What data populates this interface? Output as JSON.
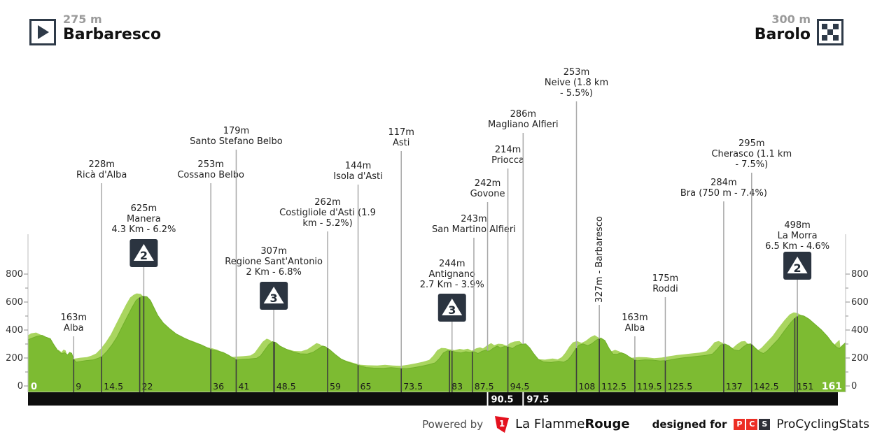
{
  "header": {
    "start": {
      "elevation": "275 m",
      "name": "Barbaresco"
    },
    "finish": {
      "elevation": "300 m",
      "name": "Barolo"
    }
  },
  "footer": {
    "powered_by": "Powered by",
    "lfr_regular": "La Flamme",
    "lfr_bold": "Rouge",
    "lfr_digit": "1",
    "designed_for": "designed for",
    "pcs_letters": [
      "P",
      "C",
      "S"
    ],
    "pcs_name": "ProCyclingStats",
    "lfr_red": "#e4111e",
    "pcs_red": "#ec2e24",
    "pcs_dark": "#2f3038"
  },
  "chart_data": {
    "type": "area",
    "title": "Barbaresco - Barolo",
    "xlim": [
      0,
      161
    ],
    "ylim": [
      0,
      900
    ],
    "x_ticks": [
      0,
      9,
      14.5,
      22,
      36,
      41,
      48.5,
      59,
      65,
      73.5,
      83,
      87.5,
      94.5,
      108,
      112.5,
      119.5,
      125.5,
      137,
      142.5,
      151,
      161
    ],
    "x_tick_first_label": "0",
    "x_tick_last_label": "161",
    "y_ticks": [
      0,
      200,
      400,
      600,
      800
    ],
    "y_minor_step": 100,
    "band_ticks": [
      {
        "km": 90.5,
        "label": "90.5"
      },
      {
        "km": 97.5,
        "label": "97.5"
      }
    ],
    "colors": {
      "area_main": "#7dbb32",
      "area_main_edge": "#6fae29",
      "area_light": "#a9d55f",
      "grid_gray": "#a8a8a8",
      "grid_dark": "#3d3d3d",
      "band_bg": "#0e0e0e",
      "band_text": "#ffffff",
      "axis_line": "#bdbdbd",
      "text": "#1c1c1c",
      "icon_bg": "#2b3440",
      "icon_triangle": "#ffffff",
      "icon_digit": "#222b36"
    },
    "markers": [
      {
        "km": 9,
        "type": "town",
        "label": [
          "163m",
          "Alba"
        ],
        "top": 447
      },
      {
        "km": 14.5,
        "type": "town",
        "label": [
          "228m",
          "Ricà d'Alba"
        ],
        "top": 228
      },
      {
        "km": 22.8,
        "type": "climb",
        "label": [
          "625m",
          "Manera",
          "4.3 Km - 6.2%"
        ],
        "top": 291,
        "icon_y": 342,
        "category": "2"
      },
      {
        "km": 36,
        "type": "town",
        "label": [
          "253m",
          "Cossano Belbo"
        ],
        "top": 228
      },
      {
        "km": 41,
        "type": "town",
        "label": [
          "179m",
          "Santo Stefano Belbo"
        ],
        "top": 180
      },
      {
        "km": 48.4,
        "type": "climb",
        "label": [
          "307m",
          "Regione Sant'Antonio",
          "2 Km - 6.8%"
        ],
        "top": 352,
        "icon_y": 403,
        "category": "3"
      },
      {
        "km": 59,
        "type": "town",
        "label": [
          "262m",
          "Costigliole d'Asti (1.9",
          "km - 5.2%)"
        ],
        "top": 282
      },
      {
        "km": 65,
        "type": "town",
        "label": [
          "144m",
          "Isola d'Asti"
        ],
        "top": 230
      },
      {
        "km": 73.5,
        "type": "town",
        "label": [
          "117m",
          "Asti"
        ],
        "top": 182
      },
      {
        "km": 83.5,
        "type": "climb",
        "label": [
          "244m",
          "Antignano",
          "2.7 Km - 3.9%"
        ],
        "top": 370,
        "icon_y": 420,
        "category": "3"
      },
      {
        "km": 87.8,
        "type": "town",
        "label": [
          "243m",
          "San Martino Alfieri"
        ],
        "top": 306
      },
      {
        "km": 90.5,
        "type": "town",
        "label": [
          "242m",
          "Govone"
        ],
        "top": 255
      },
      {
        "km": 94.5,
        "type": "town",
        "label": [
          "214m",
          "Priocca"
        ],
        "top": 207
      },
      {
        "km": 97.5,
        "type": "town",
        "label": [
          "286m",
          "Magliano Alfieri"
        ],
        "top": 156
      },
      {
        "km": 108,
        "type": "town",
        "label": [
          "253m",
          "Neive (1.8 km",
          "- 5.5%)"
        ],
        "top": 96
      },
      {
        "km": 112.5,
        "type": "vertical",
        "label": [
          "327m - Barbaresco"
        ],
        "bottom": 433
      },
      {
        "km": 119.5,
        "type": "town",
        "label": [
          "163m",
          "Alba"
        ],
        "top": 447
      },
      {
        "km": 125.5,
        "type": "town",
        "label": [
          "175m",
          "Roddi"
        ],
        "top": 391
      },
      {
        "km": 137,
        "type": "town",
        "label": [
          "284m",
          "Bra (750 m - 7.4%)"
        ],
        "top": 254
      },
      {
        "km": 142.5,
        "type": "town",
        "label": [
          "295m",
          "Cherasco (1.1 km",
          "- 7.5%)"
        ],
        "top": 198
      },
      {
        "km": 151.5,
        "type": "climb",
        "label": [
          "498m",
          "La Morra",
          "6.5 Km - 4.6%"
        ],
        "top": 315,
        "icon_y": 360,
        "category": "2"
      }
    ],
    "profile": [
      [
        0,
        330
      ],
      [
        0.8,
        342
      ],
      [
        1.8,
        356
      ],
      [
        2.8,
        362
      ],
      [
        3.6,
        348
      ],
      [
        4.4,
        338
      ],
      [
        5,
        300
      ],
      [
        5.8,
        256
      ],
      [
        6.6,
        230
      ],
      [
        7.2,
        238
      ],
      [
        7.8,
        222
      ],
      [
        8.2,
        240
      ],
      [
        8.6,
        234
      ],
      [
        9,
        190
      ],
      [
        9.5,
        170
      ],
      [
        10.5,
        176
      ],
      [
        11.5,
        182
      ],
      [
        12.8,
        186
      ],
      [
        13.8,
        198
      ],
      [
        14.6,
        212
      ],
      [
        15.5,
        245
      ],
      [
        16.5,
        292
      ],
      [
        17.5,
        348
      ],
      [
        18.5,
        420
      ],
      [
        19.5,
        492
      ],
      [
        20.5,
        562
      ],
      [
        21.3,
        612
      ],
      [
        22,
        632
      ],
      [
        22.6,
        642
      ],
      [
        23.4,
        638
      ],
      [
        24.1,
        612
      ],
      [
        24.8,
        560
      ],
      [
        25.6,
        502
      ],
      [
        26.6,
        452
      ],
      [
        27.8,
        412
      ],
      [
        29.2,
        372
      ],
      [
        30.8,
        342
      ],
      [
        32.4,
        316
      ],
      [
        34,
        296
      ],
      [
        35.4,
        272
      ],
      [
        36.4,
        256
      ],
      [
        37.4,
        250
      ],
      [
        38.4,
        240
      ],
      [
        39.4,
        222
      ],
      [
        40.4,
        200
      ],
      [
        41.2,
        186
      ],
      [
        42.2,
        190
      ],
      [
        43.6,
        193
      ],
      [
        45,
        198
      ],
      [
        45.8,
        216
      ],
      [
        46.6,
        256
      ],
      [
        47.4,
        296
      ],
      [
        48.2,
        318
      ],
      [
        48.8,
        310
      ],
      [
        49.6,
        286
      ],
      [
        50.8,
        264
      ],
      [
        52.2,
        244
      ],
      [
        53.6,
        230
      ],
      [
        55,
        228
      ],
      [
        56.2,
        242
      ],
      [
        57.2,
        266
      ],
      [
        58,
        286
      ],
      [
        58.6,
        280
      ],
      [
        59.4,
        260
      ],
      [
        60.4,
        228
      ],
      [
        61.6,
        194
      ],
      [
        63,
        170
      ],
      [
        64.4,
        155
      ],
      [
        65.4,
        144
      ],
      [
        66.6,
        132
      ],
      [
        68,
        128
      ],
      [
        70,
        126
      ],
      [
        71.5,
        131
      ],
      [
        73,
        126
      ],
      [
        74.5,
        124
      ],
      [
        76,
        131
      ],
      [
        77.5,
        141
      ],
      [
        79,
        153
      ],
      [
        80.2,
        166
      ],
      [
        81,
        196
      ],
      [
        81.8,
        236
      ],
      [
        82.6,
        252
      ],
      [
        83.4,
        250
      ],
      [
        84.2,
        242
      ],
      [
        85.2,
        236
      ],
      [
        86.2,
        245
      ],
      [
        87,
        240
      ],
      [
        87.8,
        246
      ],
      [
        88.6,
        232
      ],
      [
        89.4,
        248
      ],
      [
        90.2,
        256
      ],
      [
        90.8,
        248
      ],
      [
        91.6,
        270
      ],
      [
        92.4,
        286
      ],
      [
        93,
        272
      ],
      [
        93.8,
        282
      ],
      [
        94.6,
        280
      ],
      [
        95.4,
        268
      ],
      [
        96.2,
        288
      ],
      [
        97,
        298
      ],
      [
        98,
        301
      ],
      [
        98.8,
        272
      ],
      [
        99.6,
        230
      ],
      [
        100.5,
        190
      ],
      [
        101.5,
        172
      ],
      [
        103,
        168
      ],
      [
        104.5,
        176
      ],
      [
        105.5,
        170
      ],
      [
        106.3,
        186
      ],
      [
        107,
        216
      ],
      [
        107.8,
        262
      ],
      [
        108.5,
        292
      ],
      [
        109.3,
        301
      ],
      [
        110.2,
        288
      ],
      [
        111,
        302
      ],
      [
        112,
        330
      ],
      [
        112.8,
        343
      ],
      [
        113.6,
        325
      ],
      [
        114.4,
        270
      ],
      [
        115.2,
        228
      ],
      [
        116,
        226
      ],
      [
        116.8,
        238
      ],
      [
        117.6,
        228
      ],
      [
        118.4,
        208
      ],
      [
        119.2,
        190
      ],
      [
        120,
        181
      ],
      [
        121.5,
        187
      ],
      [
        123,
        185
      ],
      [
        124.5,
        179
      ],
      [
        126,
        183
      ],
      [
        127.5,
        193
      ],
      [
        129,
        201
      ],
      [
        130.5,
        207
      ],
      [
        132,
        213
      ],
      [
        133.5,
        219
      ],
      [
        134.8,
        229
      ],
      [
        135.6,
        258
      ],
      [
        136.4,
        293
      ],
      [
        137.2,
        301
      ],
      [
        138,
        288
      ],
      [
        139,
        258
      ],
      [
        140,
        252
      ],
      [
        140.8,
        278
      ],
      [
        141.6,
        298
      ],
      [
        142.4,
        301
      ],
      [
        143.2,
        272
      ],
      [
        144,
        246
      ],
      [
        144.8,
        232
      ],
      [
        145.6,
        252
      ],
      [
        146.6,
        290
      ],
      [
        147.8,
        336
      ],
      [
        149,
        396
      ],
      [
        150.2,
        452
      ],
      [
        151.2,
        492
      ],
      [
        152,
        506
      ],
      [
        152.8,
        500
      ],
      [
        153.8,
        478
      ],
      [
        155,
        440
      ],
      [
        156.2,
        402
      ],
      [
        157.4,
        355
      ],
      [
        158.4,
        308
      ],
      [
        159.2,
        278
      ],
      [
        159.8,
        268
      ],
      [
        160.4,
        290
      ],
      [
        161,
        310
      ]
    ]
  }
}
